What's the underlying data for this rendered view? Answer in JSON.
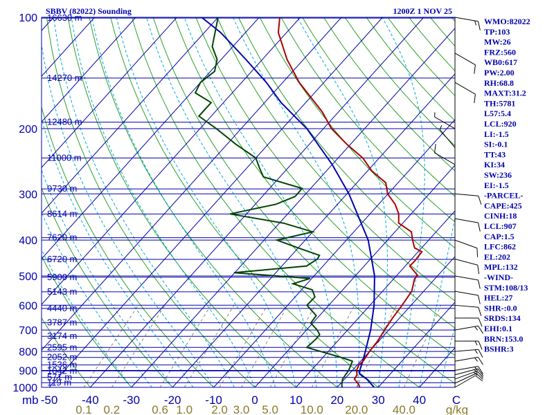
{
  "chart_data": {
    "type": "skew-t log-p sounding",
    "title_left": "SBBV (82022) Sounding",
    "title_right": "1200Z  1 NOV 25",
    "pressure_labels": [
      "100",
      "200",
      "300",
      "400",
      "500",
      "600",
      "700",
      "800",
      "900",
      "1000"
    ],
    "pressure_ticks": [
      100,
      200,
      300,
      400,
      500,
      600,
      700,
      800,
      900,
      1000
    ],
    "heights": [
      {
        "p": 100.5,
        "label": "16630 m"
      },
      {
        "p": 146,
        "label": "14270 m"
      },
      {
        "p": 192,
        "label": "12480 m"
      },
      {
        "p": 240,
        "label": "11000 m"
      },
      {
        "p": 291,
        "label": "9730 m"
      },
      {
        "p": 340,
        "label": "8614 m"
      },
      {
        "p": 394,
        "label": "7620 m"
      },
      {
        "p": 451,
        "label": "6720 m"
      },
      {
        "p": 504,
        "label": "5900 m"
      },
      {
        "p": 552,
        "label": "5143 m"
      },
      {
        "p": 612,
        "label": "4440 m"
      },
      {
        "p": 669,
        "label": "3787 m"
      },
      {
        "p": 728,
        "label": "3174 m"
      },
      {
        "p": 780,
        "label": "2595 m"
      },
      {
        "p": 830,
        "label": "2052 m"
      },
      {
        "p": 870,
        "label": "1536 m"
      },
      {
        "p": 903,
        "label": "1042 m"
      },
      {
        "p": 940,
        "label": "571 m"
      },
      {
        "p": 972,
        "label": "119 m"
      }
    ],
    "xaxis": {
      "unit_left": "mb",
      "unit_right": "C",
      "temp_labels": [
        "-50",
        "-40",
        "-30",
        "-20",
        "-10",
        "0",
        "10",
        "20",
        "30",
        "40"
      ],
      "temps": [
        -50,
        -40,
        -30,
        -20,
        -10,
        0,
        10,
        20,
        30,
        40
      ]
    },
    "mixing_ratio_axis": {
      "unit": "g/kg",
      "labels": [
        {
          "w": 0.1,
          "label": "0.1"
        },
        {
          "w": 0.2,
          "label": "0.2"
        },
        {
          "w": 0.6,
          "label": "0.6"
        },
        {
          "w": 1.0,
          "label": "1.0"
        },
        {
          "w": 2.0,
          "label": "2.0"
        },
        {
          "w": 3.0,
          "label": "3.0"
        },
        {
          "w": 5.0,
          "label": "5.0"
        },
        {
          "w": 10.0,
          "label": "10.0"
        },
        {
          "w": 20.0,
          "label": "20.0"
        },
        {
          "w": 40.0,
          "label": "40.0"
        }
      ]
    },
    "temperature_profile": [
      [
        1000,
        25.5
      ],
      [
        982,
        24.6
      ],
      [
        950,
        22.4
      ],
      [
        925,
        22.1
      ],
      [
        900,
        21.0
      ],
      [
        870,
        20.4
      ],
      [
        850,
        20.6
      ],
      [
        800,
        20.0
      ],
      [
        750,
        19.7
      ],
      [
        700,
        19.0
      ],
      [
        650,
        18.3
      ],
      [
        600,
        17.8
      ],
      [
        550,
        17.1
      ],
      [
        510,
        15.1
      ],
      [
        498,
        15.0
      ],
      [
        470,
        11.1
      ],
      [
        455,
        11.2
      ],
      [
        430,
        10.9
      ],
      [
        420,
        8.3
      ],
      [
        400,
        6.1
      ],
      [
        380,
        4.0
      ],
      [
        360,
        -1.0
      ],
      [
        340,
        -3.0
      ],
      [
        320,
        -6.0
      ],
      [
        300,
        -10.1
      ],
      [
        280,
        -13.0
      ],
      [
        260,
        -19.0
      ],
      [
        240,
        -24.0
      ],
      [
        220,
        -31.0
      ],
      [
        200,
        -38.0
      ],
      [
        180,
        -44.0
      ],
      [
        150,
        -56.0
      ],
      [
        130,
        -64.0
      ],
      [
        110,
        -72.0
      ],
      [
        100,
        -75.0
      ]
    ],
    "dewpoint_profile": [
      [
        1000,
        21.2
      ],
      [
        982,
        20.5
      ],
      [
        950,
        19.5
      ],
      [
        900,
        19.1
      ],
      [
        850,
        18.0
      ],
      [
        830,
        14.4
      ],
      [
        780,
        3.9
      ],
      [
        740,
        4.3
      ],
      [
        720,
        4.2
      ],
      [
        700,
        2.6
      ],
      [
        670,
        -0.5
      ],
      [
        640,
        -0.8
      ],
      [
        600,
        -5.3
      ],
      [
        570,
        -5.2
      ],
      [
        545,
        -7.4
      ],
      [
        525,
        -13.4
      ],
      [
        508,
        -10.4
      ],
      [
        490,
        -30.2
      ],
      [
        470,
        -14.0
      ],
      [
        450,
        -12.9
      ],
      [
        440,
        -13.2
      ],
      [
        420,
        -20.0
      ],
      [
        400,
        -26.9
      ],
      [
        380,
        -20.0
      ],
      [
        360,
        -29.0
      ],
      [
        340,
        -44.0
      ],
      [
        320,
        -35.0
      ],
      [
        305,
        -32.0
      ],
      [
        290,
        -32.1
      ],
      [
        270,
        -44.0
      ],
      [
        255,
        -47.0
      ],
      [
        240,
        -50.0
      ],
      [
        220,
        -58.0
      ],
      [
        200,
        -66.0
      ],
      [
        185,
        -73.0
      ],
      [
        170,
        -73.0
      ],
      [
        160,
        -79.0
      ],
      [
        150,
        -80.0
      ],
      [
        140,
        -79.0
      ],
      [
        130,
        -81.0
      ],
      [
        120,
        -85.0
      ],
      [
        100,
        -90.0
      ]
    ],
    "parcel_profile": [
      [
        1000,
        29.0
      ],
      [
        950,
        25.4
      ],
      [
        920,
        22.5
      ],
      [
        900,
        21.8
      ],
      [
        850,
        20.5
      ],
      [
        800,
        19.0
      ],
      [
        700,
        15.6
      ],
      [
        600,
        11.0
      ],
      [
        500,
        4.7
      ],
      [
        400,
        -4.7
      ],
      [
        300,
        -19.5
      ],
      [
        250,
        -30.0
      ],
      [
        200,
        -44.0
      ],
      [
        170,
        -56.0
      ],
      [
        150,
        -64.0
      ],
      [
        130,
        -74.0
      ],
      [
        110,
        -86.0
      ],
      [
        100,
        -94.0
      ]
    ],
    "wind_barbs": [
      {
        "p": 1000,
        "dir": 60,
        "spd": 10
      },
      {
        "p": 975,
        "dir": 65,
        "spd": 10
      },
      {
        "p": 950,
        "dir": 70,
        "spd": 15
      },
      {
        "p": 925,
        "dir": 75,
        "spd": 15
      },
      {
        "p": 900,
        "dir": 80,
        "spd": 15
      },
      {
        "p": 850,
        "dir": 80,
        "spd": 15
      },
      {
        "p": 800,
        "dir": 85,
        "spd": 15
      },
      {
        "p": 750,
        "dir": 90,
        "spd": 15
      },
      {
        "p": 700,
        "dir": 80,
        "spd": 15
      },
      {
        "p": 650,
        "dir": 90,
        "spd": 10
      },
      {
        "p": 600,
        "dir": 95,
        "spd": 10
      },
      {
        "p": 550,
        "dir": 100,
        "spd": 10
      },
      {
        "p": 500,
        "dir": 100,
        "spd": 10
      },
      {
        "p": 450,
        "dir": 105,
        "spd": 10
      },
      {
        "p": 400,
        "dir": 110,
        "spd": 10
      },
      {
        "p": 350,
        "dir": 100,
        "spd": 10
      },
      {
        "p": 300,
        "dir": 95,
        "spd": 10
      },
      {
        "p": 250,
        "dir": 300,
        "spd": 10
      },
      {
        "p": 225,
        "dir": 320,
        "spd": 5
      },
      {
        "p": 200,
        "dir": 300,
        "spd": 5
      },
      {
        "p": 150,
        "dir": 120,
        "spd": 10
      },
      {
        "p": 125,
        "dir": 120,
        "spd": 10
      },
      {
        "p": 100,
        "dir": 100,
        "spd": 15
      }
    ],
    "indices": [
      "WMO:82022",
      "TP:103",
      "MW:26",
      "FRZ:560",
      "WB0:617",
      "PW:2.00",
      "RH:68.8",
      "MAXT:31.2",
      "TH:5781",
      "L57:5.4",
      "LCL:920",
      "LI:-1.5",
      "SI:-0.1",
      "TT:43",
      "KI:34",
      "SW:236",
      "EI:-1.5",
      "-PARCEL-",
      "CAPE:425",
      "CINH:18",
      "LCL:907",
      "CAP:1.5",
      "LFC:862",
      "EL:202",
      "MPL:132",
      "-WIND-",
      "STM:108/13",
      "HEL:27",
      "SHR-:0.0",
      "SRDS:134",
      "EHI:0.1",
      "BRN:153.0",
      "BSHR:3"
    ],
    "colors": {
      "frame": "#0000aa",
      "isotherm": "#0000aa",
      "dry_adiabat": "#2aa02a",
      "moist_adiabat": "#00aadd",
      "mixing_ratio": "#8a8a6a",
      "temperature": "#aa0000",
      "dewpoint": "#004400",
      "parcel": "#0000aa",
      "wind_barb": "#000000"
    }
  }
}
